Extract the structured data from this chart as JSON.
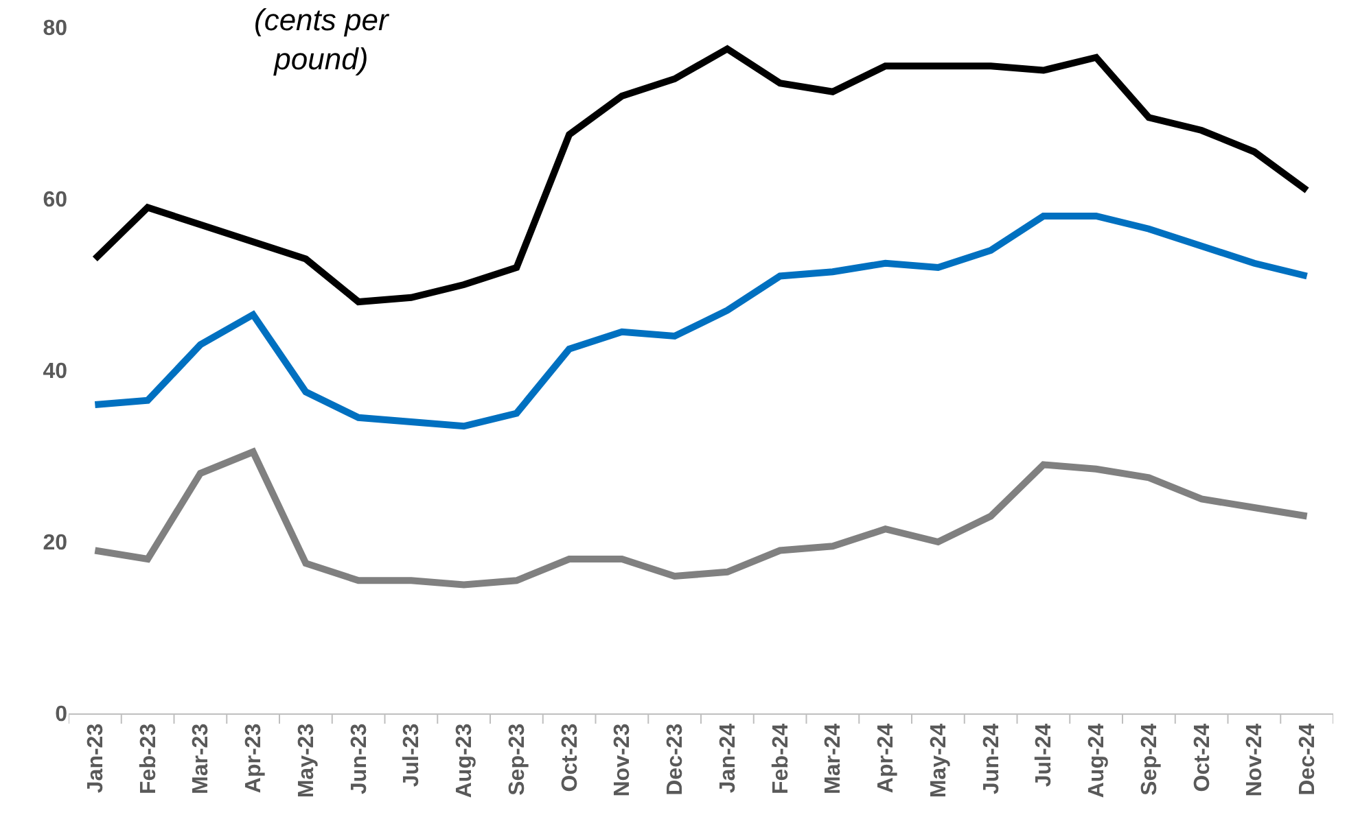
{
  "chart_data": {
    "type": "line",
    "annotations": [
      "(cents per pound)"
    ],
    "categories": [
      "Jan-23",
      "Feb-23",
      "Mar-23",
      "Apr-23",
      "May-23",
      "Jun-23",
      "Jul-23",
      "Aug-23",
      "Sep-23",
      "Oct-23",
      "Nov-23",
      "Dec-23",
      "Jan-24",
      "Feb-24",
      "Mar-24",
      "Apr-24",
      "May-24",
      "Jun-24",
      "Jul-24",
      "Aug-24",
      "Sep-24",
      "Oct-24",
      "Nov-24",
      "Dec-24"
    ],
    "series": [
      {
        "color": "#000000",
        "values": [
          53,
          59,
          57,
          55,
          53,
          48,
          48.5,
          50,
          52,
          67.5,
          72,
          74,
          77.5,
          73.5,
          72.5,
          75.5,
          75.5,
          75.5,
          75,
          76.5,
          69.5,
          68,
          65.5,
          61
        ]
      },
      {
        "color": "#0070c0",
        "values": [
          36,
          36.5,
          43,
          46.5,
          37.5,
          34.5,
          34,
          33.5,
          35,
          42.5,
          44.5,
          44,
          47,
          51,
          51.5,
          52.5,
          52,
          54,
          58,
          58,
          56.5,
          54.5,
          52.5,
          51
        ]
      },
      {
        "color": "#808080",
        "values": [
          19,
          18,
          28,
          30.5,
          17.5,
          15.5,
          15.5,
          15,
          15.5,
          18,
          18,
          16,
          16.5,
          19,
          19.5,
          21.5,
          20,
          23,
          29,
          28.5,
          27.5,
          25,
          24,
          23
        ]
      }
    ],
    "ylim": [
      0,
      80
    ],
    "yticks": [
      0,
      20,
      40,
      60,
      80
    ],
    "marker": "none",
    "line_style": "solid"
  }
}
